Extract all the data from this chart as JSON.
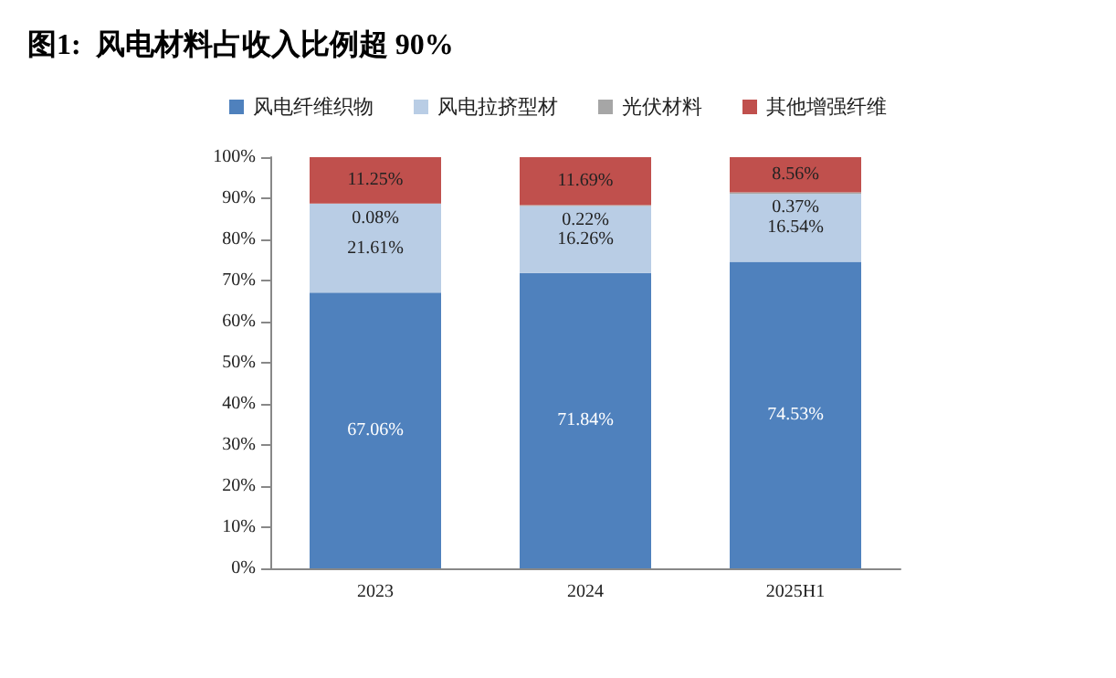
{
  "chart_data": {
    "type": "bar",
    "stacked": true,
    "title": "图1:  风电材料占收入比例超 90%",
    "categories": [
      "2023",
      "2024",
      "2025H1"
    ],
    "series": [
      {
        "name": "风电纤维织物",
        "color": "#4f81bd",
        "values": [
          67.06,
          71.84,
          74.53
        ],
        "value_labels": [
          "67.06%",
          "71.84%",
          "74.53%"
        ]
      },
      {
        "name": "风电拉挤型材",
        "color": "#b9cde5",
        "values": [
          21.61,
          16.26,
          16.54
        ],
        "value_labels": [
          "21.61%",
          "16.26%",
          "16.54%"
        ]
      },
      {
        "name": "光伏材料",
        "color": "#a6a6a6",
        "values": [
          0.08,
          0.22,
          0.37
        ],
        "value_labels": [
          "0.08%",
          "0.22%",
          "0.37%"
        ]
      },
      {
        "name": "其他增强纤维",
        "color": "#c0504d",
        "values": [
          11.25,
          11.69,
          8.56
        ],
        "value_labels": [
          "11.25%",
          "11.69%",
          "8.56%"
        ]
      }
    ],
    "ylim": [
      0,
      100
    ],
    "yticks": [
      {
        "value": 0,
        "label": "0%"
      },
      {
        "value": 10,
        "label": "10%"
      },
      {
        "value": 20,
        "label": "20%"
      },
      {
        "value": 30,
        "label": "30%"
      },
      {
        "value": 40,
        "label": "40%"
      },
      {
        "value": 50,
        "label": "50%"
      },
      {
        "value": 60,
        "label": "60%"
      },
      {
        "value": 70,
        "label": "70%"
      },
      {
        "value": 80,
        "label": "80%"
      },
      {
        "value": 90,
        "label": "90%"
      },
      {
        "value": 100,
        "label": "100%"
      }
    ],
    "legend": "top",
    "grid": false
  }
}
